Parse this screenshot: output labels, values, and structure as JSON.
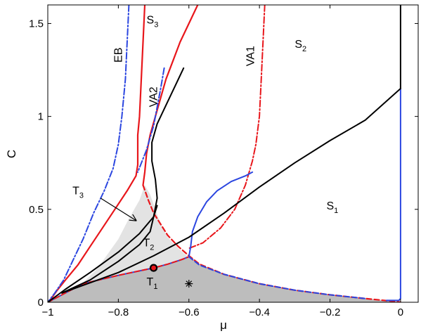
{
  "chart_data": {
    "type": "line",
    "title": "",
    "xlabel": "μ",
    "ylabel": "C",
    "xlim": [
      -1.0,
      0.05
    ],
    "ylim": [
      0,
      1.6
    ],
    "x_ticks": [
      {
        "value": -1.0,
        "label": "−1"
      },
      {
        "value": -0.8,
        "label": "−0.8"
      },
      {
        "value": -0.6,
        "label": "−0.6"
      },
      {
        "value": -0.4,
        "label": "−0.4"
      },
      {
        "value": -0.2,
        "label": "−0.2"
      },
      {
        "value": 0.0,
        "label": "0"
      }
    ],
    "y_ticks": [
      {
        "value": 0,
        "label": "0"
      },
      {
        "value": 0.5,
        "label": "0.5"
      },
      {
        "value": 1.0,
        "label": "1"
      },
      {
        "value": 1.5,
        "label": "1.5"
      }
    ],
    "grid": false,
    "legend": "none",
    "colors": {
      "red": "#e8161b",
      "blue": "#2b46e0",
      "black": "#000000",
      "shade_light": "#e3e3e3",
      "shade_dark": "#bdbdbd"
    },
    "shaded_regions": [
      {
        "name": "light",
        "color": "#e3e3e3",
        "points": [
          [
            -1.0,
            0.0
          ],
          [
            -0.93,
            0.05
          ],
          [
            -0.86,
            0.18
          ],
          [
            -0.8,
            0.34
          ],
          [
            -0.77,
            0.45
          ],
          [
            -0.74,
            0.55
          ],
          [
            -0.725,
            0.63
          ],
          [
            -0.71,
            0.58
          ],
          [
            -0.695,
            0.5
          ],
          [
            -0.68,
            0.42
          ],
          [
            -0.66,
            0.35
          ],
          [
            -0.63,
            0.29
          ],
          [
            -0.6,
            0.24
          ],
          [
            -0.57,
            0.2
          ],
          [
            -0.5,
            0.15
          ],
          [
            -0.4,
            0.1
          ],
          [
            -0.3,
            0.065
          ],
          [
            -0.2,
            0.04
          ],
          [
            -0.1,
            0.02
          ],
          [
            -0.02,
            0.005
          ],
          [
            0.0,
            0.0
          ]
        ]
      },
      {
        "name": "dark",
        "color": "#bdbdbd",
        "points": [
          [
            -1.0,
            0.0
          ],
          [
            -0.95,
            0.05
          ],
          [
            -0.9,
            0.1
          ],
          [
            -0.8,
            0.145
          ],
          [
            -0.7,
            0.185
          ],
          [
            -0.66,
            0.205
          ],
          [
            -0.62,
            0.23
          ],
          [
            -0.6,
            0.245
          ],
          [
            -0.57,
            0.2
          ],
          [
            -0.5,
            0.15
          ],
          [
            -0.4,
            0.1
          ],
          [
            -0.3,
            0.065
          ],
          [
            -0.2,
            0.04
          ],
          [
            -0.1,
            0.02
          ],
          [
            -0.02,
            0.005
          ],
          [
            0.0,
            0.0
          ]
        ]
      }
    ],
    "series": [
      {
        "color": "#e8161b",
        "dash": "solid",
        "width": 2.2,
        "points": [
          [
            -0.725,
            1.6
          ],
          [
            -0.73,
            1.4
          ],
          [
            -0.735,
            1.2
          ],
          [
            -0.74,
            1.0
          ],
          [
            -0.745,
            0.9
          ],
          [
            -0.745,
            0.82
          ],
          [
            -0.745,
            0.74
          ],
          [
            -0.75,
            0.68
          ],
          [
            -0.775,
            0.6
          ],
          [
            -0.81,
            0.5
          ],
          [
            -0.845,
            0.4
          ],
          [
            -0.88,
            0.3
          ],
          [
            -0.915,
            0.2
          ],
          [
            -0.95,
            0.12
          ],
          [
            -0.975,
            0.06
          ],
          [
            -0.99,
            0.02
          ],
          [
            -1.0,
            0.0
          ]
        ]
      },
      {
        "color": "#e8161b",
        "dash": "solid",
        "width": 2.2,
        "points": [
          [
            -0.575,
            1.6
          ],
          [
            -0.6,
            1.5
          ],
          [
            -0.625,
            1.4
          ],
          [
            -0.645,
            1.3
          ],
          [
            -0.665,
            1.2
          ],
          [
            -0.68,
            1.1
          ],
          [
            -0.695,
            1.0
          ],
          [
            -0.71,
            0.9
          ],
          [
            -0.72,
            0.8
          ],
          [
            -0.725,
            0.7
          ],
          [
            -0.73,
            0.63
          ]
        ]
      },
      {
        "color": "#e8161b",
        "dash": "dash",
        "width": 2.2,
        "points": [
          [
            -0.73,
            0.63
          ],
          [
            -0.715,
            0.55
          ],
          [
            -0.7,
            0.48
          ],
          [
            -0.68,
            0.42
          ],
          [
            -0.66,
            0.36
          ],
          [
            -0.63,
            0.3
          ],
          [
            -0.6,
            0.25
          ],
          [
            -0.57,
            0.205
          ],
          [
            -0.5,
            0.15
          ],
          [
            -0.4,
            0.1
          ],
          [
            -0.3,
            0.065
          ],
          [
            -0.2,
            0.04
          ],
          [
            -0.1,
            0.02
          ],
          [
            -0.02,
            0.005
          ],
          [
            0.0,
            0.0
          ]
        ]
      },
      {
        "color": "#e8161b",
        "dash": "dashdot",
        "width": 2.0,
        "points": [
          [
            -0.385,
            1.6
          ],
          [
            -0.39,
            1.4
          ],
          [
            -0.395,
            1.2
          ],
          [
            -0.4,
            1.0
          ],
          [
            -0.41,
            0.85
          ],
          [
            -0.42,
            0.76
          ],
          [
            -0.44,
            0.63
          ],
          [
            -0.47,
            0.5
          ],
          [
            -0.51,
            0.4
          ],
          [
            -0.56,
            0.32
          ],
          [
            -0.6,
            0.29
          ]
        ]
      },
      {
        "color": "#2b46e0",
        "dash": "dashdot",
        "width": 2.0,
        "points": [
          [
            -0.77,
            1.6
          ],
          [
            -0.775,
            1.4
          ],
          [
            -0.78,
            1.2
          ],
          [
            -0.79,
            1.0
          ],
          [
            -0.8,
            0.85
          ],
          [
            -0.815,
            0.72
          ],
          [
            -0.84,
            0.6
          ],
          [
            -0.87,
            0.48
          ],
          [
            -0.9,
            0.34
          ],
          [
            -0.93,
            0.22
          ],
          [
            -0.955,
            0.12
          ],
          [
            -0.98,
            0.05
          ],
          [
            -1.0,
            0.0
          ]
        ]
      },
      {
        "color": "#2b46e0",
        "dash": "dashdot",
        "width": 2.0,
        "points": [
          [
            -0.67,
            1.26
          ],
          [
            -0.68,
            1.15
          ],
          [
            -0.69,
            1.05
          ],
          [
            -0.7,
            0.95
          ],
          [
            -0.72,
            0.82
          ],
          [
            -0.745,
            0.7
          ]
        ]
      },
      {
        "color": "#2b46e0",
        "dash": "solid",
        "width": 2.0,
        "points": [
          [
            -0.6,
            0.245
          ],
          [
            -0.595,
            0.3
          ],
          [
            -0.59,
            0.38
          ],
          [
            -0.575,
            0.46
          ],
          [
            -0.55,
            0.54
          ],
          [
            -0.52,
            0.6
          ],
          [
            -0.48,
            0.65
          ],
          [
            -0.44,
            0.68
          ],
          [
            -0.42,
            0.7
          ]
        ]
      },
      {
        "color": "#2b46e0",
        "dash": "solid",
        "width": 2.0,
        "points": [
          [
            -1.0,
            0.0
          ],
          [
            -0.95,
            0.05
          ],
          [
            -0.9,
            0.1
          ],
          [
            -0.8,
            0.145
          ],
          [
            -0.7,
            0.185
          ],
          [
            -0.66,
            0.205
          ],
          [
            -0.62,
            0.23
          ],
          [
            -0.6,
            0.245
          ]
        ]
      },
      {
        "color": "#e8161b",
        "dash": "dash",
        "width": 2.0,
        "points": [
          [
            -1.0,
            0.0
          ],
          [
            -0.95,
            0.05
          ],
          [
            -0.9,
            0.1
          ],
          [
            -0.8,
            0.145
          ],
          [
            -0.7,
            0.185
          ],
          [
            -0.66,
            0.205
          ],
          [
            -0.62,
            0.23
          ],
          [
            -0.6,
            0.245
          ]
        ]
      },
      {
        "color": "#2b46e0",
        "dash": "dash",
        "width": 2.0,
        "points": [
          [
            -0.6,
            0.245
          ],
          [
            -0.57,
            0.2
          ],
          [
            -0.5,
            0.15
          ],
          [
            -0.4,
            0.1
          ],
          [
            -0.3,
            0.065
          ],
          [
            -0.2,
            0.04
          ],
          [
            -0.1,
            0.02
          ]
        ]
      },
      {
        "color": "#2b46e0",
        "dash": "solid",
        "width": 2.0,
        "points": [
          [
            0.0,
            1.15
          ],
          [
            0.0,
            0.5
          ],
          [
            0.0,
            0.1
          ],
          [
            0.0,
            0.02
          ],
          [
            -0.005,
            0.01
          ],
          [
            -0.04,
            0.01
          ]
        ]
      },
      {
        "color": "#000000",
        "dash": "solid",
        "width": 2.0,
        "points": [
          [
            -1.0,
            0.0
          ],
          [
            -0.95,
            0.07
          ],
          [
            -0.88,
            0.16
          ],
          [
            -0.8,
            0.27
          ],
          [
            -0.74,
            0.37
          ],
          [
            -0.7,
            0.46
          ],
          [
            -0.69,
            0.56
          ],
          [
            -0.695,
            0.66
          ],
          [
            -0.705,
            0.76
          ],
          [
            -0.705,
            0.86
          ],
          [
            -0.69,
            0.96
          ],
          [
            -0.665,
            1.06
          ],
          [
            -0.64,
            1.16
          ],
          [
            -0.615,
            1.26
          ]
        ]
      },
      {
        "color": "#000000",
        "dash": "solid",
        "width": 2.0,
        "points": [
          [
            -0.96,
            0.05
          ],
          [
            -0.88,
            0.12
          ],
          [
            -0.8,
            0.22
          ],
          [
            -0.74,
            0.31
          ],
          [
            -0.71,
            0.38
          ],
          [
            -0.7,
            0.46
          ],
          [
            -0.69,
            0.52
          ]
        ]
      },
      {
        "color": "#000000",
        "dash": "solid",
        "width": 2.0,
        "points": [
          [
            -0.96,
            0.05
          ],
          [
            -0.8,
            0.16
          ],
          [
            -0.7,
            0.25
          ],
          [
            -0.6,
            0.35
          ],
          [
            -0.5,
            0.48
          ],
          [
            -0.4,
            0.62
          ],
          [
            -0.3,
            0.75
          ],
          [
            -0.2,
            0.87
          ],
          [
            -0.1,
            0.98
          ],
          [
            0.0,
            1.15
          ]
        ]
      },
      {
        "color": "#000000",
        "dash": "solid",
        "width": 2.0,
        "points": [
          [
            0.0,
            1.15
          ],
          [
            0.0,
            1.6
          ]
        ]
      }
    ],
    "annotations": [
      {
        "text": "S",
        "sub": "3",
        "x": -0.72,
        "y": 1.5
      },
      {
        "text": "S",
        "sub": "2",
        "x": -0.3,
        "y": 1.37
      },
      {
        "text": "S",
        "sub": "1",
        "x": -0.21,
        "y": 0.5
      },
      {
        "text": "T",
        "sub": "3",
        "x": -0.93,
        "y": 0.58
      },
      {
        "text": "T",
        "sub": "2",
        "x": -0.73,
        "y": 0.3
      },
      {
        "text": "T",
        "sub": "1",
        "x": -0.72,
        "y": 0.09
      },
      {
        "text": "EB",
        "sub": "",
        "x": -0.79,
        "y": 1.29,
        "rotate": -90
      },
      {
        "text": "VA2",
        "sub": "",
        "x": -0.69,
        "y": 1.05,
        "rotate": -90
      },
      {
        "text": "VA1",
        "sub": "",
        "x": -0.415,
        "y": 1.27,
        "rotate": -90
      }
    ],
    "arrow": {
      "from": [
        -0.85,
        0.56
      ],
      "to": [
        -0.75,
        0.44
      ]
    },
    "special_points": [
      {
        "marker": "circle",
        "x": -0.7,
        "y": 0.185,
        "color": "#000000",
        "fill": "#e8161b"
      },
      {
        "marker": "star",
        "x": -0.6,
        "y": 0.1,
        "color": "#000000"
      }
    ]
  }
}
